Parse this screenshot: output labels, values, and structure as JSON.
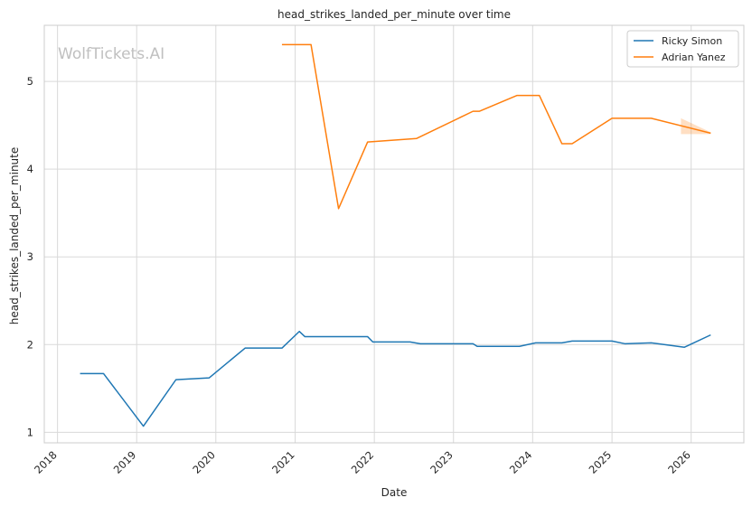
{
  "watermark": "WolfTickets.AI",
  "chart_data": {
    "type": "line",
    "title": "head_strikes_landed_per_minute over time",
    "xlabel": "Date",
    "ylabel": "head_strikes_landed_per_minute",
    "xlim": [
      "2017-11-01",
      "2026-09-01"
    ],
    "ylim": [
      0.88,
      5.64
    ],
    "x_ticks": [
      "2018",
      "2019",
      "2020",
      "2021",
      "2022",
      "2023",
      "2024",
      "2025",
      "2026"
    ],
    "y_ticks": [
      1,
      2,
      3,
      4,
      5
    ],
    "grid": true,
    "legend_position": "top-right",
    "series": [
      {
        "name": "Ricky Simon",
        "color": "#1f77b4",
        "points": [
          [
            "2018-04-15",
            1.67
          ],
          [
            "2018-08-01",
            1.67
          ],
          [
            "2019-02-01",
            1.07
          ],
          [
            "2019-07-01",
            1.6
          ],
          [
            "2019-12-01",
            1.62
          ],
          [
            "2020-05-15",
            1.96
          ],
          [
            "2020-11-01",
            1.96
          ],
          [
            "2021-01-20",
            2.15
          ],
          [
            "2021-02-15",
            2.09
          ],
          [
            "2021-12-01",
            2.09
          ],
          [
            "2021-12-25",
            2.03
          ],
          [
            "2022-06-15",
            2.03
          ],
          [
            "2022-08-01",
            2.01
          ],
          [
            "2023-04-01",
            2.01
          ],
          [
            "2023-04-20",
            1.98
          ],
          [
            "2023-11-01",
            1.98
          ],
          [
            "2024-01-15",
            2.02
          ],
          [
            "2024-05-15",
            2.02
          ],
          [
            "2024-07-01",
            2.04
          ],
          [
            "2025-01-01",
            2.04
          ],
          [
            "2025-03-01",
            2.01
          ],
          [
            "2025-07-01",
            2.02
          ],
          [
            "2025-12-01",
            1.97
          ],
          [
            "2026-04-01",
            2.11
          ]
        ]
      },
      {
        "name": "Adrian Yanez",
        "color": "#ff7f0e",
        "points": [
          [
            "2020-11-01",
            5.42
          ],
          [
            "2021-03-15",
            5.42
          ],
          [
            "2021-07-20",
            3.55
          ],
          [
            "2021-12-01",
            4.31
          ],
          [
            "2022-07-15",
            4.35
          ],
          [
            "2023-04-01",
            4.66
          ],
          [
            "2023-05-01",
            4.66
          ],
          [
            "2023-10-20",
            4.84
          ],
          [
            "2024-02-01",
            4.84
          ],
          [
            "2024-05-15",
            4.29
          ],
          [
            "2024-07-01",
            4.29
          ],
          [
            "2025-01-01",
            4.58
          ],
          [
            "2025-07-01",
            4.58
          ],
          [
            "2026-04-01",
            4.41
          ]
        ],
        "band": [
          [
            "2025-11-15",
            4.4,
            4.58
          ],
          [
            "2026-04-01",
            4.4,
            4.42
          ]
        ]
      }
    ]
  }
}
